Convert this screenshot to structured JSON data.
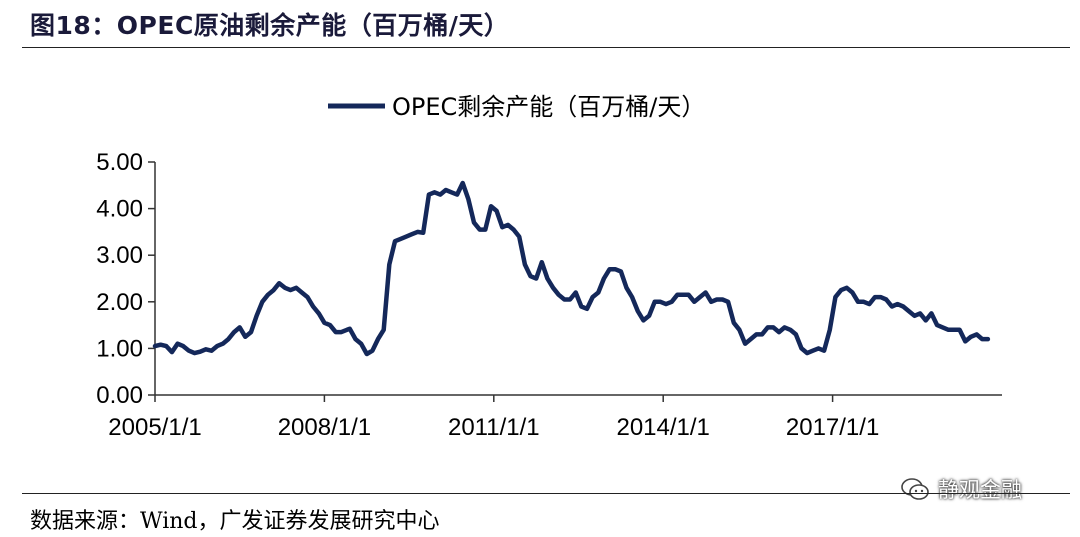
{
  "figure_title": "图18：OPEC原油剩余产能（百万桶/天）",
  "source_text": "数据来源：Wind，广发证券发展研究中心",
  "watermark_text": "静观金融",
  "colors": {
    "series": "#14285a",
    "axis": "#333333"
  },
  "chart_data": {
    "type": "line",
    "legend": "OPEC剩余产能（百万桶/天）",
    "legend_position": "top-center",
    "grid": false,
    "ylim": [
      0,
      5
    ],
    "y_ticks": [
      "0.00",
      "1.00",
      "2.00",
      "3.00",
      "4.00",
      "5.00"
    ],
    "x_range": [
      2005.0,
      2020.0
    ],
    "x_ticks": [
      {
        "label": "2005/1/1",
        "x": 2005.0
      },
      {
        "label": "2008/1/1",
        "x": 2008.0
      },
      {
        "label": "2011/1/1",
        "x": 2011.0
      },
      {
        "label": "2014/1/1",
        "x": 2014.0
      },
      {
        "label": "2017/1/1",
        "x": 2017.0
      }
    ],
    "series": [
      {
        "name": "OPEC剩余产能（百万桶/天）",
        "points": [
          [
            2005.0,
            1.05
          ],
          [
            2005.1,
            1.08
          ],
          [
            2005.2,
            1.05
          ],
          [
            2005.3,
            0.92
          ],
          [
            2005.4,
            1.1
          ],
          [
            2005.5,
            1.05
          ],
          [
            2005.6,
            0.95
          ],
          [
            2005.7,
            0.9
          ],
          [
            2005.8,
            0.93
          ],
          [
            2005.9,
            0.98
          ],
          [
            2006.0,
            0.95
          ],
          [
            2006.1,
            1.05
          ],
          [
            2006.2,
            1.1
          ],
          [
            2006.3,
            1.2
          ],
          [
            2006.4,
            1.35
          ],
          [
            2006.5,
            1.45
          ],
          [
            2006.6,
            1.25
          ],
          [
            2006.7,
            1.35
          ],
          [
            2006.8,
            1.7
          ],
          [
            2006.9,
            2.0
          ],
          [
            2007.0,
            2.15
          ],
          [
            2007.1,
            2.25
          ],
          [
            2007.2,
            2.4
          ],
          [
            2007.3,
            2.3
          ],
          [
            2007.4,
            2.25
          ],
          [
            2007.5,
            2.3
          ],
          [
            2007.6,
            2.2
          ],
          [
            2007.7,
            2.1
          ],
          [
            2007.8,
            1.9
          ],
          [
            2007.9,
            1.75
          ],
          [
            2008.0,
            1.55
          ],
          [
            2008.1,
            1.5
          ],
          [
            2008.2,
            1.35
          ],
          [
            2008.3,
            1.35
          ],
          [
            2008.4,
            1.4
          ],
          [
            2008.45,
            1.42
          ],
          [
            2008.55,
            1.2
          ],
          [
            2008.65,
            1.1
          ],
          [
            2008.75,
            0.88
          ],
          [
            2008.85,
            0.95
          ],
          [
            2008.95,
            1.2
          ],
          [
            2009.05,
            1.4
          ],
          [
            2009.15,
            2.8
          ],
          [
            2009.25,
            3.3
          ],
          [
            2009.35,
            3.35
          ],
          [
            2009.45,
            3.4
          ],
          [
            2009.55,
            3.45
          ],
          [
            2009.65,
            3.5
          ],
          [
            2009.75,
            3.48
          ],
          [
            2009.85,
            4.3
          ],
          [
            2009.95,
            4.35
          ],
          [
            2010.05,
            4.3
          ],
          [
            2010.15,
            4.4
          ],
          [
            2010.25,
            4.35
          ],
          [
            2010.35,
            4.3
          ],
          [
            2010.45,
            4.55
          ],
          [
            2010.55,
            4.2
          ],
          [
            2010.65,
            3.7
          ],
          [
            2010.75,
            3.55
          ],
          [
            2010.85,
            3.55
          ],
          [
            2010.95,
            4.05
          ],
          [
            2011.05,
            3.95
          ],
          [
            2011.15,
            3.6
          ],
          [
            2011.25,
            3.65
          ],
          [
            2011.35,
            3.55
          ],
          [
            2011.45,
            3.4
          ],
          [
            2011.55,
            2.8
          ],
          [
            2011.65,
            2.55
          ],
          [
            2011.75,
            2.5
          ],
          [
            2011.85,
            2.85
          ],
          [
            2011.95,
            2.5
          ],
          [
            2012.05,
            2.3
          ],
          [
            2012.15,
            2.15
          ],
          [
            2012.25,
            2.05
          ],
          [
            2012.35,
            2.05
          ],
          [
            2012.45,
            2.2
          ],
          [
            2012.55,
            1.9
          ],
          [
            2012.65,
            1.85
          ],
          [
            2012.75,
            2.1
          ],
          [
            2012.85,
            2.2
          ],
          [
            2012.95,
            2.5
          ],
          [
            2013.05,
            2.7
          ],
          [
            2013.15,
            2.7
          ],
          [
            2013.25,
            2.65
          ],
          [
            2013.35,
            2.3
          ],
          [
            2013.45,
            2.1
          ],
          [
            2013.55,
            1.8
          ],
          [
            2013.65,
            1.6
          ],
          [
            2013.75,
            1.7
          ],
          [
            2013.85,
            2.0
          ],
          [
            2013.95,
            2.0
          ],
          [
            2014.05,
            1.95
          ],
          [
            2014.15,
            2.0
          ],
          [
            2014.25,
            2.15
          ],
          [
            2014.35,
            2.15
          ],
          [
            2014.45,
            2.15
          ],
          [
            2014.55,
            2.0
          ],
          [
            2014.65,
            2.1
          ],
          [
            2014.75,
            2.2
          ],
          [
            2014.85,
            2.0
          ],
          [
            2014.95,
            2.05
          ],
          [
            2015.05,
            2.05
          ],
          [
            2015.15,
            2.0
          ],
          [
            2015.25,
            1.55
          ],
          [
            2015.35,
            1.4
          ],
          [
            2015.45,
            1.1
          ],
          [
            2015.55,
            1.2
          ],
          [
            2015.65,
            1.3
          ],
          [
            2015.75,
            1.3
          ],
          [
            2015.85,
            1.45
          ],
          [
            2015.95,
            1.45
          ],
          [
            2016.05,
            1.35
          ],
          [
            2016.15,
            1.45
          ],
          [
            2016.25,
            1.4
          ],
          [
            2016.35,
            1.3
          ],
          [
            2016.45,
            1.0
          ],
          [
            2016.55,
            0.9
          ],
          [
            2016.65,
            0.95
          ],
          [
            2016.75,
            1.0
          ],
          [
            2016.85,
            0.95
          ],
          [
            2016.95,
            1.4
          ],
          [
            2017.05,
            2.1
          ],
          [
            2017.15,
            2.25
          ],
          [
            2017.25,
            2.3
          ],
          [
            2017.35,
            2.2
          ],
          [
            2017.45,
            2.0
          ],
          [
            2017.55,
            2.0
          ],
          [
            2017.65,
            1.95
          ],
          [
            2017.75,
            2.1
          ],
          [
            2017.85,
            2.1
          ],
          [
            2017.95,
            2.05
          ],
          [
            2018.05,
            1.9
          ],
          [
            2018.15,
            1.95
          ],
          [
            2018.25,
            1.9
          ],
          [
            2018.35,
            1.8
          ],
          [
            2018.45,
            1.7
          ],
          [
            2018.55,
            1.75
          ],
          [
            2018.65,
            1.6
          ],
          [
            2018.75,
            1.75
          ],
          [
            2018.85,
            1.5
          ],
          [
            2018.95,
            1.45
          ],
          [
            2019.05,
            1.4
          ],
          [
            2019.15,
            1.4
          ],
          [
            2019.25,
            1.4
          ],
          [
            2019.35,
            1.15
          ],
          [
            2019.45,
            1.25
          ],
          [
            2019.55,
            1.3
          ],
          [
            2019.65,
            1.2
          ],
          [
            2019.75,
            1.2
          ]
        ]
      }
    ]
  }
}
